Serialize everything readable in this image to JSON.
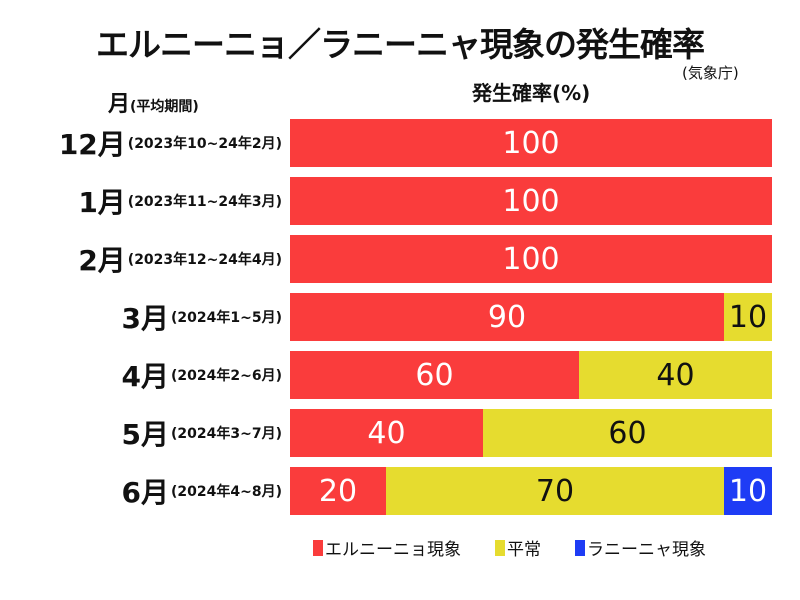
{
  "chart_data": {
    "type": "bar",
    "orientation": "horizontal-stacked-100",
    "title": "エルニーニョ／ラニーニャ現象の発生確率",
    "source": "(気象庁)",
    "ylabel_main": "月",
    "ylabel_sub": "(平均期間)",
    "xlabel": "発生確率(%)",
    "xlim": [
      0,
      100
    ],
    "grid": false,
    "legend_position": "bottom",
    "categories": [
      {
        "month": "12月",
        "period": "(2023年10~24年2月)"
      },
      {
        "month": "1月",
        "period": "(2023年11~24年3月)"
      },
      {
        "month": "2月",
        "period": "(2023年12~24年4月)"
      },
      {
        "month": "3月",
        "period": "(2024年1~5月)"
      },
      {
        "month": "4月",
        "period": "(2024年2~6月)"
      },
      {
        "month": "5月",
        "period": "(2024年3~7月)"
      },
      {
        "month": "6月",
        "period": "(2024年4~8月)"
      }
    ],
    "series": [
      {
        "name": "エルニーニョ現象",
        "color": "#fa3c3c",
        "text_color": "#ffffff",
        "values": [
          100,
          100,
          100,
          90,
          60,
          40,
          20
        ]
      },
      {
        "name": "平常",
        "color": "#e6dc2f",
        "text_color": "#111111",
        "values": [
          0,
          0,
          0,
          10,
          40,
          60,
          70
        ]
      },
      {
        "name": "ラニーニャ現象",
        "color": "#1e3cf5",
        "text_color": "#ffffff",
        "values": [
          0,
          0,
          0,
          0,
          0,
          0,
          10
        ]
      }
    ]
  }
}
